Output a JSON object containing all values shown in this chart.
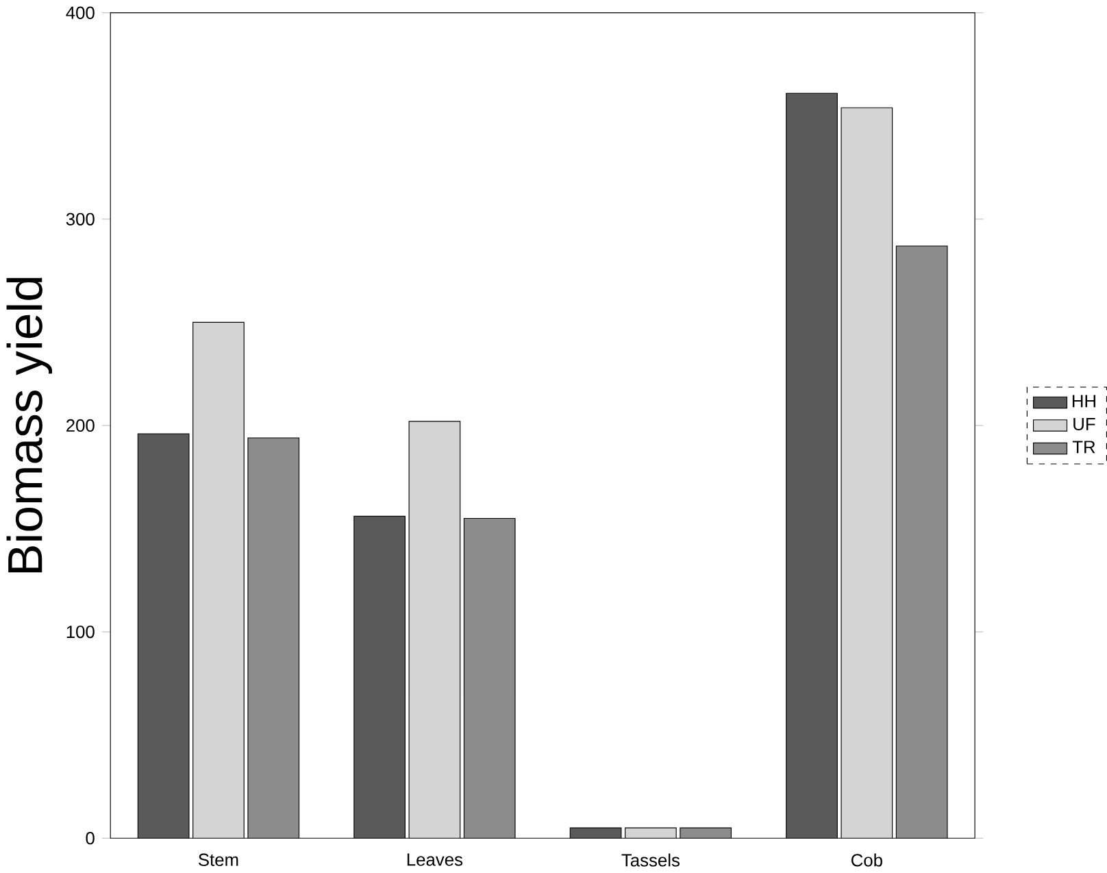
{
  "chart_data": {
    "type": "bar",
    "ylabel": "Biomass yield",
    "categories": [
      "Stem",
      "Leaves",
      "Tassels",
      "Cob"
    ],
    "series": [
      {
        "name": "HH",
        "color": "#5a5a5a",
        "values": [
          196,
          156,
          5,
          361
        ]
      },
      {
        "name": "UF",
        "color": "#d4d4d4",
        "values": [
          250,
          202,
          5,
          354
        ]
      },
      {
        "name": "TR",
        "color": "#8c8c8c",
        "values": [
          194,
          155,
          5,
          287
        ]
      }
    ],
    "ylim": [
      0,
      400
    ],
    "yticks": [
      0,
      100,
      200,
      300,
      400
    ],
    "legend": "right"
  }
}
